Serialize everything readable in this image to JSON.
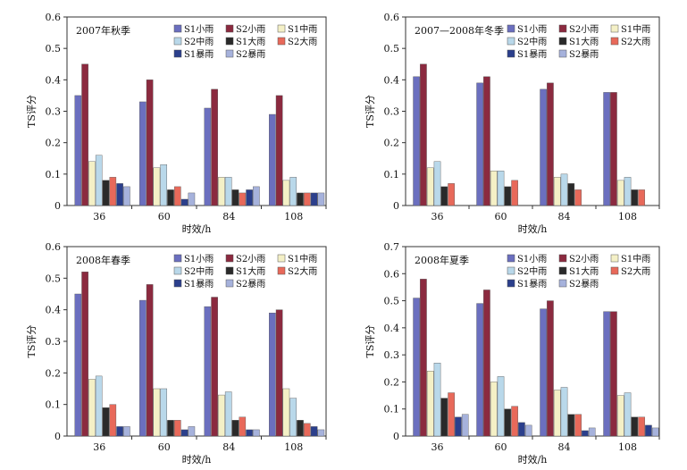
{
  "chart_data": [
    {
      "type": "bar",
      "title": "2007年秋季",
      "xlabel": "时效/h",
      "ylabel": "TS评分",
      "ylim": [
        0,
        0.6
      ],
      "yticks": [
        "0",
        "0.1",
        "0.2",
        "0.3",
        "0.4",
        "0.5",
        "0.6"
      ],
      "categories": [
        "36",
        "60",
        "84",
        "108"
      ],
      "legend_position": "top-right",
      "series": [
        {
          "name": "S1小雨",
          "color": "#6b6fbf",
          "values": [
            0.35,
            0.33,
            0.31,
            0.29
          ]
        },
        {
          "name": "S2小雨",
          "color": "#8b2a3f",
          "values": [
            0.45,
            0.4,
            0.37,
            0.35
          ]
        },
        {
          "name": "S1中雨",
          "color": "#f4f0c6",
          "values": [
            0.14,
            0.12,
            0.09,
            0.08
          ]
        },
        {
          "name": "S2中雨",
          "color": "#b9d8ea",
          "values": [
            0.16,
            0.13,
            0.09,
            0.09
          ]
        },
        {
          "name": "S1大雨",
          "color": "#2a2a2a",
          "values": [
            0.08,
            0.05,
            0.05,
            0.04
          ]
        },
        {
          "name": "S2大雨",
          "color": "#e8695a",
          "values": [
            0.09,
            0.06,
            0.04,
            0.04
          ]
        },
        {
          "name": "S1暴雨",
          "color": "#2b3f8c",
          "values": [
            0.07,
            0.02,
            0.05,
            0.04
          ]
        },
        {
          "name": "S2暴雨",
          "color": "#a6b2dc",
          "values": [
            0.06,
            0.04,
            0.06,
            0.04
          ]
        }
      ]
    },
    {
      "type": "bar",
      "title": "2007—2008年冬季",
      "xlabel": "时效/h",
      "ylabel": "TS评分",
      "ylim": [
        0,
        0.6
      ],
      "yticks": [
        "0",
        "0.1",
        "0.2",
        "0.3",
        "0.4",
        "0.5",
        "0.6"
      ],
      "categories": [
        "36",
        "60",
        "84",
        "108"
      ],
      "legend_position": "top-right",
      "series": [
        {
          "name": "S1小雨",
          "color": "#6b6fbf",
          "values": [
            0.41,
            0.39,
            0.37,
            0.36
          ]
        },
        {
          "name": "S2小雨",
          "color": "#8b2a3f",
          "values": [
            0.45,
            0.41,
            0.39,
            0.36
          ]
        },
        {
          "name": "S1中雨",
          "color": "#f4f0c6",
          "values": [
            0.12,
            0.11,
            0.09,
            0.08
          ]
        },
        {
          "name": "S2中雨",
          "color": "#b9d8ea",
          "values": [
            0.14,
            0.11,
            0.1,
            0.09
          ]
        },
        {
          "name": "S1大雨",
          "color": "#2a2a2a",
          "values": [
            0.06,
            0.06,
            0.07,
            0.05
          ]
        },
        {
          "name": "S2大雨",
          "color": "#e8695a",
          "values": [
            0.07,
            0.08,
            0.05,
            0.05
          ]
        },
        {
          "name": "S1暴雨",
          "color": "#2b3f8c",
          "values": [
            0,
            0,
            0,
            0
          ]
        },
        {
          "name": "S2暴雨",
          "color": "#a6b2dc",
          "values": [
            0,
            0,
            0,
            0
          ]
        }
      ]
    },
    {
      "type": "bar",
      "title": "2008年春季",
      "xlabel": "时效/h",
      "ylabel": "TS评分",
      "ylim": [
        0,
        0.6
      ],
      "yticks": [
        "0",
        "0.1",
        "0.2",
        "0.3",
        "0.4",
        "0.5",
        "0.6"
      ],
      "categories": [
        "36",
        "60",
        "84",
        "108"
      ],
      "legend_position": "top-right",
      "series": [
        {
          "name": "S1小雨",
          "color": "#6b6fbf",
          "values": [
            0.45,
            0.43,
            0.41,
            0.39
          ]
        },
        {
          "name": "S2小雨",
          "color": "#8b2a3f",
          "values": [
            0.52,
            0.48,
            0.44,
            0.4
          ]
        },
        {
          "name": "S1中雨",
          "color": "#f4f0c6",
          "values": [
            0.18,
            0.15,
            0.13,
            0.15
          ]
        },
        {
          "name": "S2中雨",
          "color": "#b9d8ea",
          "values": [
            0.19,
            0.15,
            0.14,
            0.12
          ]
        },
        {
          "name": "S1大雨",
          "color": "#2a2a2a",
          "values": [
            0.09,
            0.05,
            0.05,
            0.05
          ]
        },
        {
          "name": "S2大雨",
          "color": "#e8695a",
          "values": [
            0.1,
            0.05,
            0.06,
            0.04
          ]
        },
        {
          "name": "S1暴雨",
          "color": "#2b3f8c",
          "values": [
            0.03,
            0.02,
            0.02,
            0.03
          ]
        },
        {
          "name": "S2暴雨",
          "color": "#a6b2dc",
          "values": [
            0.03,
            0.03,
            0.02,
            0.02
          ]
        }
      ]
    },
    {
      "type": "bar",
      "title": "2008年夏季",
      "xlabel": "时效/h",
      "ylabel": "TS评分",
      "ylim": [
        0,
        0.7
      ],
      "yticks": [
        "0",
        "0.1",
        "0.2",
        "0.3",
        "0.4",
        "0.5",
        "0.6",
        "0.7"
      ],
      "categories": [
        "36",
        "60",
        "84",
        "108"
      ],
      "legend_position": "top-right",
      "series": [
        {
          "name": "S1小雨",
          "color": "#6b6fbf",
          "values": [
            0.51,
            0.49,
            0.47,
            0.46
          ]
        },
        {
          "name": "S2小雨",
          "color": "#8b2a3f",
          "values": [
            0.58,
            0.54,
            0.5,
            0.46
          ]
        },
        {
          "name": "S1中雨",
          "color": "#f4f0c6",
          "values": [
            0.24,
            0.2,
            0.17,
            0.15
          ]
        },
        {
          "name": "S2中雨",
          "color": "#b9d8ea",
          "values": [
            0.27,
            0.22,
            0.18,
            0.16
          ]
        },
        {
          "name": "S1大雨",
          "color": "#2a2a2a",
          "values": [
            0.14,
            0.1,
            0.08,
            0.07
          ]
        },
        {
          "name": "S2大雨",
          "color": "#e8695a",
          "values": [
            0.16,
            0.11,
            0.08,
            0.07
          ]
        },
        {
          "name": "S1暴雨",
          "color": "#2b3f8c",
          "values": [
            0.07,
            0.05,
            0.02,
            0.04
          ]
        },
        {
          "name": "S2暴雨",
          "color": "#a6b2dc",
          "values": [
            0.08,
            0.04,
            0.03,
            0.03
          ]
        }
      ]
    }
  ]
}
